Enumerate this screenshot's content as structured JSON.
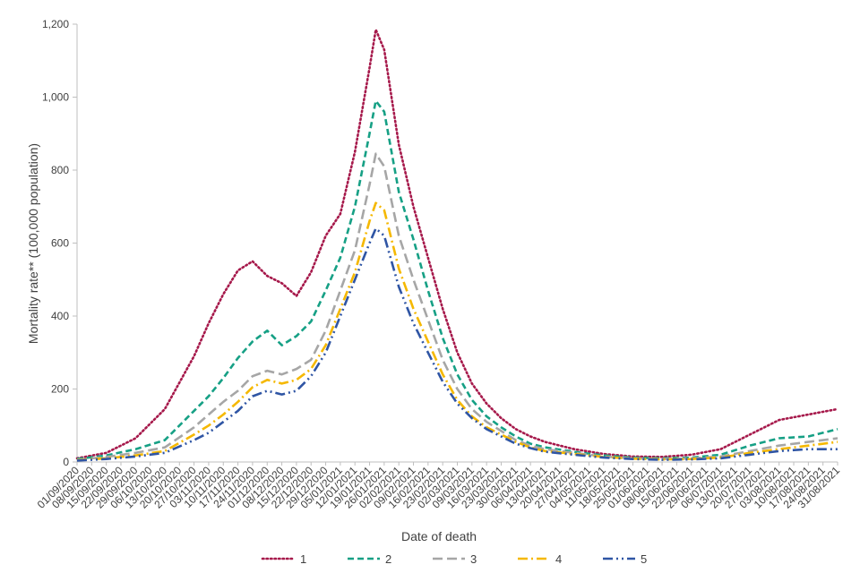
{
  "chart_data": {
    "type": "line",
    "title": "",
    "xlabel": "Date of death",
    "ylabel": "Mortality rate** (100,000 population)",
    "ylim": [
      0,
      1200
    ],
    "yticks": [
      0,
      200,
      400,
      600,
      800,
      1000,
      1200
    ],
    "ytick_labels": [
      "0",
      "200",
      "400",
      "600",
      "800",
      "1,000",
      "1,200"
    ],
    "x_start": "2020-09-01",
    "x_end": "2021-08-31",
    "xtick_labels": [
      "01/09/2020",
      "08/09/2020",
      "15/09/2020",
      "22/09/2020",
      "29/09/2020",
      "06/10/2020",
      "13/10/2020",
      "20/10/2020",
      "27/10/2020",
      "03/11/2020",
      "10/11/2020",
      "17/11/2020",
      "24/11/2020",
      "01/12/2020",
      "08/12/2020",
      "15/12/2020",
      "22/12/2020",
      "29/12/2020",
      "05/01/2021",
      "12/01/2021",
      "19/01/2021",
      "26/01/2021",
      "02/02/2021",
      "09/02/2021",
      "16/02/2021",
      "23/02/2021",
      "02/03/2021",
      "09/03/2021",
      "16/03/2021",
      "23/03/2021",
      "30/03/2021",
      "06/04/2021",
      "13/04/2021",
      "20/04/2021",
      "27/04/2021",
      "04/05/2021",
      "11/05/2021",
      "18/05/2021",
      "25/05/2021",
      "01/06/2021",
      "08/06/2021",
      "15/06/2021",
      "22/06/2021",
      "29/06/2021",
      "06/07/2021",
      "13/07/2021",
      "20/07/2021",
      "27/07/2021",
      "03/08/2021",
      "10/08/2021",
      "17/08/2021",
      "24/08/2021",
      "31/08/2021"
    ],
    "legend_position": "bottom",
    "grid": false,
    "series": [
      {
        "name": "1",
        "color": "#a6194b",
        "dash": "dotted",
        "x": [
          "2020-09-01",
          "2020-09-15",
          "2020-09-29",
          "2020-10-13",
          "2020-10-27",
          "2020-11-03",
          "2020-11-10",
          "2020-11-17",
          "2020-11-24",
          "2020-12-01",
          "2020-12-08",
          "2020-12-15",
          "2020-12-22",
          "2020-12-29",
          "2021-01-05",
          "2021-01-12",
          "2021-01-19",
          "2021-01-22",
          "2021-01-26",
          "2021-02-02",
          "2021-02-09",
          "2021-02-16",
          "2021-02-23",
          "2021-03-02",
          "2021-03-09",
          "2021-03-16",
          "2021-03-23",
          "2021-03-30",
          "2021-04-06",
          "2021-04-13",
          "2021-04-27",
          "2021-05-11",
          "2021-05-25",
          "2021-06-08",
          "2021-06-22",
          "2021-07-06",
          "2021-07-20",
          "2021-08-03",
          "2021-08-17",
          "2021-08-31"
        ],
        "values": [
          10,
          25,
          65,
          145,
          290,
          380,
          460,
          525,
          550,
          510,
          490,
          455,
          520,
          620,
          680,
          850,
          1080,
          1185,
          1130,
          870,
          700,
          560,
          420,
          300,
          215,
          160,
          120,
          90,
          70,
          55,
          35,
          22,
          15,
          14,
          20,
          35,
          75,
          115,
          130,
          145
        ]
      },
      {
        "name": "2",
        "color": "#16a085",
        "dash": "dashed",
        "x": [
          "2020-09-01",
          "2020-09-15",
          "2020-09-29",
          "2020-10-13",
          "2020-10-27",
          "2020-11-03",
          "2020-11-10",
          "2020-11-17",
          "2020-11-24",
          "2020-12-01",
          "2020-12-08",
          "2020-12-15",
          "2020-12-22",
          "2020-12-29",
          "2021-01-05",
          "2021-01-12",
          "2021-01-19",
          "2021-01-22",
          "2021-01-26",
          "2021-02-02",
          "2021-02-09",
          "2021-02-16",
          "2021-02-23",
          "2021-03-02",
          "2021-03-09",
          "2021-03-16",
          "2021-03-23",
          "2021-03-30",
          "2021-04-06",
          "2021-04-13",
          "2021-04-27",
          "2021-05-11",
          "2021-05-25",
          "2021-06-08",
          "2021-06-22",
          "2021-07-06",
          "2021-07-20",
          "2021-08-03",
          "2021-08-17",
          "2021-08-31"
        ],
        "values": [
          8,
          18,
          35,
          60,
          140,
          180,
          230,
          285,
          330,
          360,
          320,
          345,
          385,
          470,
          560,
          700,
          900,
          990,
          960,
          740,
          610,
          470,
          340,
          240,
          170,
          125,
          95,
          70,
          50,
          40,
          28,
          18,
          12,
          10,
          12,
          20,
          45,
          65,
          70,
          90
        ]
      },
      {
        "name": "3",
        "color": "#a6a6a6",
        "dash": "longdash",
        "x": [
          "2020-09-01",
          "2020-09-15",
          "2020-09-29",
          "2020-10-13",
          "2020-10-27",
          "2020-11-03",
          "2020-11-10",
          "2020-11-17",
          "2020-11-24",
          "2020-12-01",
          "2020-12-08",
          "2020-12-15",
          "2020-12-22",
          "2020-12-29",
          "2021-01-05",
          "2021-01-12",
          "2021-01-19",
          "2021-01-22",
          "2021-01-26",
          "2021-02-02",
          "2021-02-09",
          "2021-02-16",
          "2021-02-23",
          "2021-03-02",
          "2021-03-09",
          "2021-03-16",
          "2021-03-23",
          "2021-03-30",
          "2021-04-06",
          "2021-04-13",
          "2021-04-27",
          "2021-05-11",
          "2021-05-25",
          "2021-06-08",
          "2021-06-22",
          "2021-07-06",
          "2021-07-20",
          "2021-08-03",
          "2021-08-17",
          "2021-08-31"
        ],
        "values": [
          6,
          14,
          25,
          40,
          95,
          130,
          165,
          195,
          235,
          250,
          240,
          255,
          280,
          360,
          470,
          580,
          760,
          845,
          810,
          620,
          500,
          390,
          280,
          200,
          145,
          110,
          85,
          60,
          45,
          35,
          25,
          15,
          10,
          8,
          10,
          15,
          30,
          45,
          55,
          65
        ]
      },
      {
        "name": "4",
        "color": "#f5b800",
        "dash": "dashdot",
        "x": [
          "2020-09-01",
          "2020-09-15",
          "2020-09-29",
          "2020-10-13",
          "2020-10-27",
          "2020-11-03",
          "2020-11-10",
          "2020-11-17",
          "2020-11-24",
          "2020-12-01",
          "2020-12-08",
          "2020-12-15",
          "2020-12-22",
          "2020-12-29",
          "2021-01-05",
          "2021-01-12",
          "2021-01-19",
          "2021-01-22",
          "2021-01-26",
          "2021-02-02",
          "2021-02-09",
          "2021-02-16",
          "2021-02-23",
          "2021-03-02",
          "2021-03-09",
          "2021-03-16",
          "2021-03-23",
          "2021-03-30",
          "2021-04-06",
          "2021-04-13",
          "2021-04-27",
          "2021-05-11",
          "2021-05-25",
          "2021-06-08",
          "2021-06-22",
          "2021-07-06",
          "2021-07-20",
          "2021-08-03",
          "2021-08-17",
          "2021-08-31"
        ],
        "values": [
          5,
          10,
          18,
          30,
          75,
          100,
          130,
          165,
          205,
          225,
          215,
          225,
          255,
          320,
          420,
          520,
          660,
          710,
          690,
          530,
          420,
          330,
          240,
          170,
          125,
          95,
          75,
          55,
          40,
          30,
          22,
          14,
          9,
          7,
          8,
          12,
          25,
          35,
          45,
          55
        ]
      },
      {
        "name": "5",
        "color": "#2f55a4",
        "dash": "dashdotdot",
        "x": [
          "2020-09-01",
          "2020-09-15",
          "2020-09-29",
          "2020-10-13",
          "2020-10-27",
          "2020-11-03",
          "2020-11-10",
          "2020-11-17",
          "2020-11-24",
          "2020-12-01",
          "2020-12-08",
          "2020-12-15",
          "2020-12-22",
          "2020-12-29",
          "2021-01-05",
          "2021-01-12",
          "2021-01-19",
          "2021-01-22",
          "2021-01-26",
          "2021-02-02",
          "2021-02-09",
          "2021-02-16",
          "2021-02-23",
          "2021-03-02",
          "2021-03-09",
          "2021-03-16",
          "2021-03-23",
          "2021-03-30",
          "2021-04-06",
          "2021-04-13",
          "2021-04-27",
          "2021-05-11",
          "2021-05-25",
          "2021-06-08",
          "2021-06-22",
          "2021-07-06",
          "2021-07-20",
          "2021-08-03",
          "2021-08-17",
          "2021-08-31"
        ],
        "values": [
          4,
          8,
          15,
          25,
          60,
          80,
          110,
          140,
          180,
          195,
          185,
          195,
          235,
          300,
          400,
          500,
          600,
          640,
          620,
          480,
          380,
          300,
          220,
          160,
          120,
          90,
          70,
          50,
          38,
          28,
          20,
          12,
          8,
          6,
          7,
          10,
          20,
          30,
          35,
          35
        ]
      }
    ]
  }
}
